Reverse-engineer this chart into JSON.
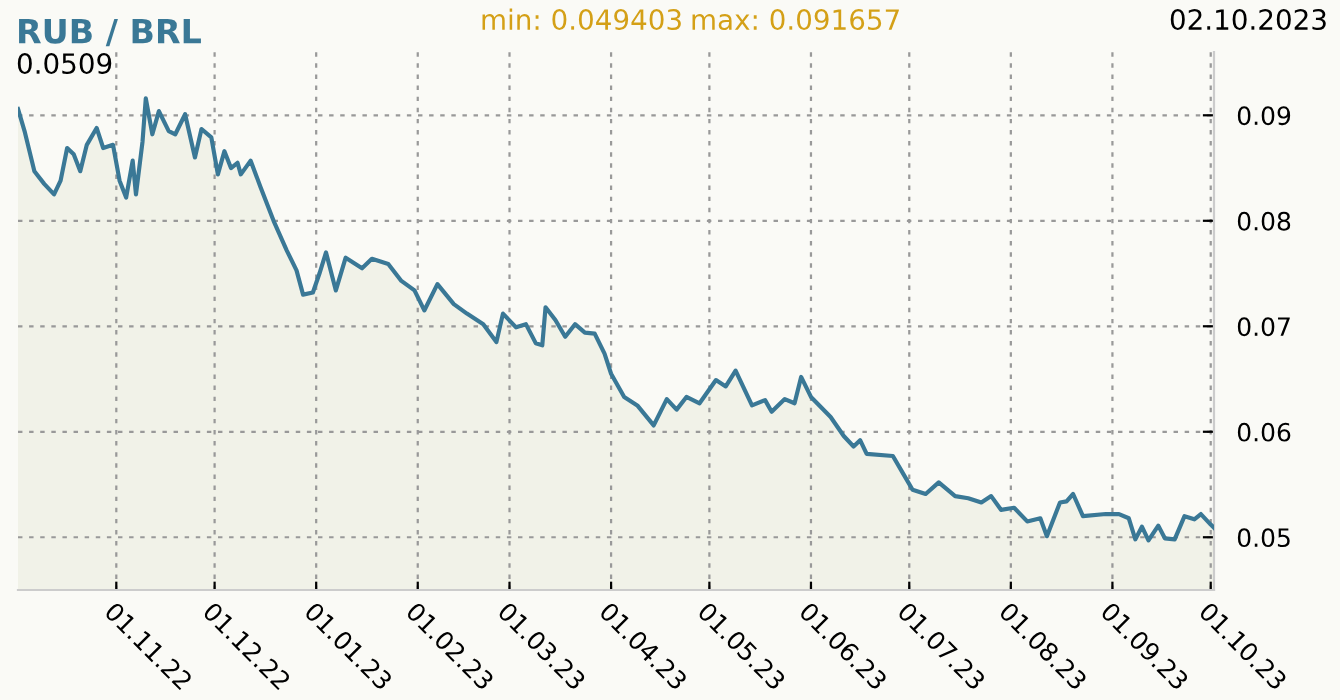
{
  "chart_data": {
    "type": "area",
    "title": "RUB / BRL",
    "annotations": [
      "0.0509",
      "min: 0.049403",
      "max: 0.091657",
      "02.10.2023"
    ],
    "x": [
      "2022-10-02",
      "2022-10-04",
      "2022-10-07",
      "2022-10-10",
      "2022-10-13",
      "2022-10-15",
      "2022-10-17",
      "2022-10-19",
      "2022-10-21",
      "2022-10-23",
      "2022-10-26",
      "2022-10-28",
      "2022-10-31",
      "2022-11-02",
      "2022-11-04",
      "2022-11-06",
      "2022-11-07",
      "2022-11-09",
      "2022-11-10",
      "2022-11-12",
      "2022-11-14",
      "2022-11-17",
      "2022-11-19",
      "2022-11-22",
      "2022-11-25",
      "2022-11-27",
      "2022-11-30",
      "2022-12-02",
      "2022-12-04",
      "2022-12-06",
      "2022-12-08",
      "2022-12-09",
      "2022-12-12",
      "2022-12-15",
      "2022-12-19",
      "2022-12-23",
      "2022-12-26",
      "2022-12-28",
      "2022-12-31",
      "2023-01-02",
      "2023-01-04",
      "2023-01-07",
      "2023-01-10",
      "2023-01-15",
      "2023-01-18",
      "2023-01-23",
      "2023-01-27",
      "2023-01-31",
      "2023-02-03",
      "2023-02-07",
      "2023-02-12",
      "2023-02-16",
      "2023-02-21",
      "2023-02-25",
      "2023-02-27",
      "2023-03-03",
      "2023-03-06",
      "2023-03-09",
      "2023-03-11",
      "2023-03-12",
      "2023-03-15",
      "2023-03-18",
      "2023-03-21",
      "2023-03-24",
      "2023-03-27",
      "2023-03-30",
      "2023-04-01",
      "2023-04-05",
      "2023-04-09",
      "2023-04-14",
      "2023-04-18",
      "2023-04-21",
      "2023-04-24",
      "2023-04-28",
      "2023-05-03",
      "2023-05-06",
      "2023-05-09",
      "2023-05-14",
      "2023-05-18",
      "2023-05-20",
      "2023-05-24",
      "2023-05-27",
      "2023-05-29",
      "2023-06-01",
      "2023-06-07",
      "2023-06-11",
      "2023-06-14",
      "2023-06-16",
      "2023-06-18",
      "2023-06-26",
      "2023-06-29",
      "2023-07-02",
      "2023-07-06",
      "2023-07-10",
      "2023-07-15",
      "2023-07-19",
      "2023-07-23",
      "2023-07-26",
      "2023-07-29",
      "2023-08-02",
      "2023-08-06",
      "2023-08-10",
      "2023-08-12",
      "2023-08-16",
      "2023-08-18",
      "2023-08-20",
      "2023-08-23",
      "2023-08-30",
      "2023-09-03",
      "2023-09-06",
      "2023-09-08",
      "2023-09-10",
      "2023-09-12",
      "2023-09-15",
      "2023-09-17",
      "2023-09-20",
      "2023-09-23",
      "2023-09-26",
      "2023-09-28",
      "2023-10-01",
      "2023-10-02"
    ],
    "series": [
      {
        "color": "#3a7896",
        "values": [
          0.0906,
          0.0885,
          0.0847,
          0.0835,
          0.0825,
          0.0838,
          0.0869,
          0.0863,
          0.0847,
          0.0872,
          0.0888,
          0.0869,
          0.0872,
          0.0838,
          0.0822,
          0.0857,
          0.0825,
          0.0875,
          0.0916,
          0.0882,
          0.0904,
          0.0885,
          0.0882,
          0.0901,
          0.086,
          0.0887,
          0.0879,
          0.0844,
          0.0866,
          0.085,
          0.0855,
          0.0844,
          0.0857,
          0.0832,
          0.08,
          0.0772,
          0.0753,
          0.073,
          0.0732,
          0.075,
          0.077,
          0.0734,
          0.0765,
          0.0755,
          0.0764,
          0.0759,
          0.0743,
          0.0734,
          0.0715,
          0.074,
          0.0721,
          0.0712,
          0.0702,
          0.0685,
          0.0712,
          0.0699,
          0.0702,
          0.0684,
          0.0682,
          0.0718,
          0.0706,
          0.069,
          0.0702,
          0.0694,
          0.0693,
          0.0674,
          0.0655,
          0.0633,
          0.0625,
          0.0606,
          0.0631,
          0.0621,
          0.0633,
          0.0627,
          0.0649,
          0.0643,
          0.0658,
          0.0625,
          0.063,
          0.0619,
          0.0631,
          0.0627,
          0.0652,
          0.0633,
          0.0614,
          0.0596,
          0.0586,
          0.0592,
          0.0579,
          0.0577,
          0.0561,
          0.0545,
          0.0541,
          0.0552,
          0.0539,
          0.0537,
          0.0533,
          0.0539,
          0.0526,
          0.0528,
          0.0515,
          0.0518,
          0.0501,
          0.0533,
          0.0534,
          0.0541,
          0.052,
          0.0522,
          0.0522,
          0.0518,
          0.0498,
          0.051,
          0.0497,
          0.0511,
          0.0499,
          0.0498,
          0.052,
          0.0517,
          0.0522,
          0.0512,
          0.0509
        ]
      }
    ],
    "xlim": [
      "2022-10-02",
      "2023-10-02"
    ],
    "xticks": [
      {
        "value": "2022-11-01",
        "label": "01.11.22"
      },
      {
        "value": "2022-12-01",
        "label": "01.12.22"
      },
      {
        "value": "2023-01-01",
        "label": "01.01.23"
      },
      {
        "value": "2023-02-01",
        "label": "01.02.23"
      },
      {
        "value": "2023-03-01",
        "label": "01.03.23"
      },
      {
        "value": "2023-04-01",
        "label": "01.04.23"
      },
      {
        "value": "2023-05-01",
        "label": "01.05.23"
      },
      {
        "value": "2023-06-01",
        "label": "01.06.23"
      },
      {
        "value": "2023-07-01",
        "label": "01.07.23"
      },
      {
        "value": "2023-08-01",
        "label": "01.08.23"
      },
      {
        "value": "2023-09-01",
        "label": "01.09.23"
      },
      {
        "value": "2023-10-01",
        "label": "01.10.23"
      }
    ],
    "ylim": [
      0.045,
      0.096
    ],
    "yticks": [
      0.05,
      0.06,
      0.07,
      0.08,
      0.09
    ],
    "grid": true,
    "legend": false
  }
}
